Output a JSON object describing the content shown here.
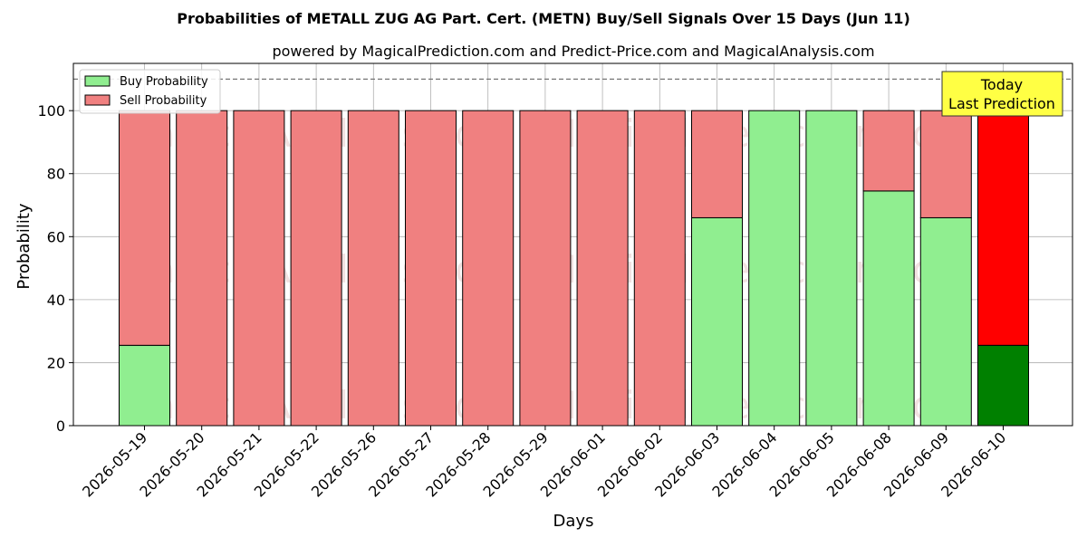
{
  "chart_data": {
    "type": "bar",
    "title": "Probabilities of METALL ZUG AG Part. Cert. (METN) Buy/Sell Signals Over 15 Days (Jun 11)",
    "subtitle": "powered by MagicalPrediction.com and Predict-Price.com and MagicalAnalysis.com",
    "xlabel": "Days",
    "ylabel": "Probability",
    "ylim": [
      0,
      115
    ],
    "yticks": [
      0,
      20,
      40,
      60,
      80,
      100
    ],
    "grid": true,
    "stacked": true,
    "reference_line": 110,
    "legend_placement": "top-left",
    "categories": [
      "2026-05-19",
      "2026-05-20",
      "2026-05-21",
      "2026-05-22",
      "2026-05-26",
      "2026-05-27",
      "2026-05-28",
      "2026-05-29",
      "2026-06-01",
      "2026-06-02",
      "2026-06-03",
      "2026-06-04",
      "2026-06-05",
      "2026-06-08",
      "2026-06-09",
      "2026-06-10"
    ],
    "series": [
      {
        "name": "Buy Probability",
        "color": "#90ee90",
        "values": [
          25.5,
          0,
          0,
          0,
          0,
          0,
          0,
          0,
          0,
          0,
          66,
          100,
          100,
          74.5,
          66,
          25.5
        ]
      },
      {
        "name": "Sell Probability",
        "color": "#f08080",
        "values": [
          74.5,
          100,
          100,
          100,
          100,
          100,
          100,
          100,
          100,
          100,
          34,
          0,
          0,
          25.5,
          34,
          74.5
        ]
      }
    ],
    "highlight": {
      "category": "2026-06-10",
      "buy_color": "#008000",
      "sell_color": "#ff0000"
    },
    "annotation": {
      "lines": [
        "Today",
        "Last Prediction"
      ],
      "background": "#ffff44"
    },
    "watermarks": [
      "MagicalAnalysis.com",
      "MagicalPrediction.com"
    ]
  }
}
